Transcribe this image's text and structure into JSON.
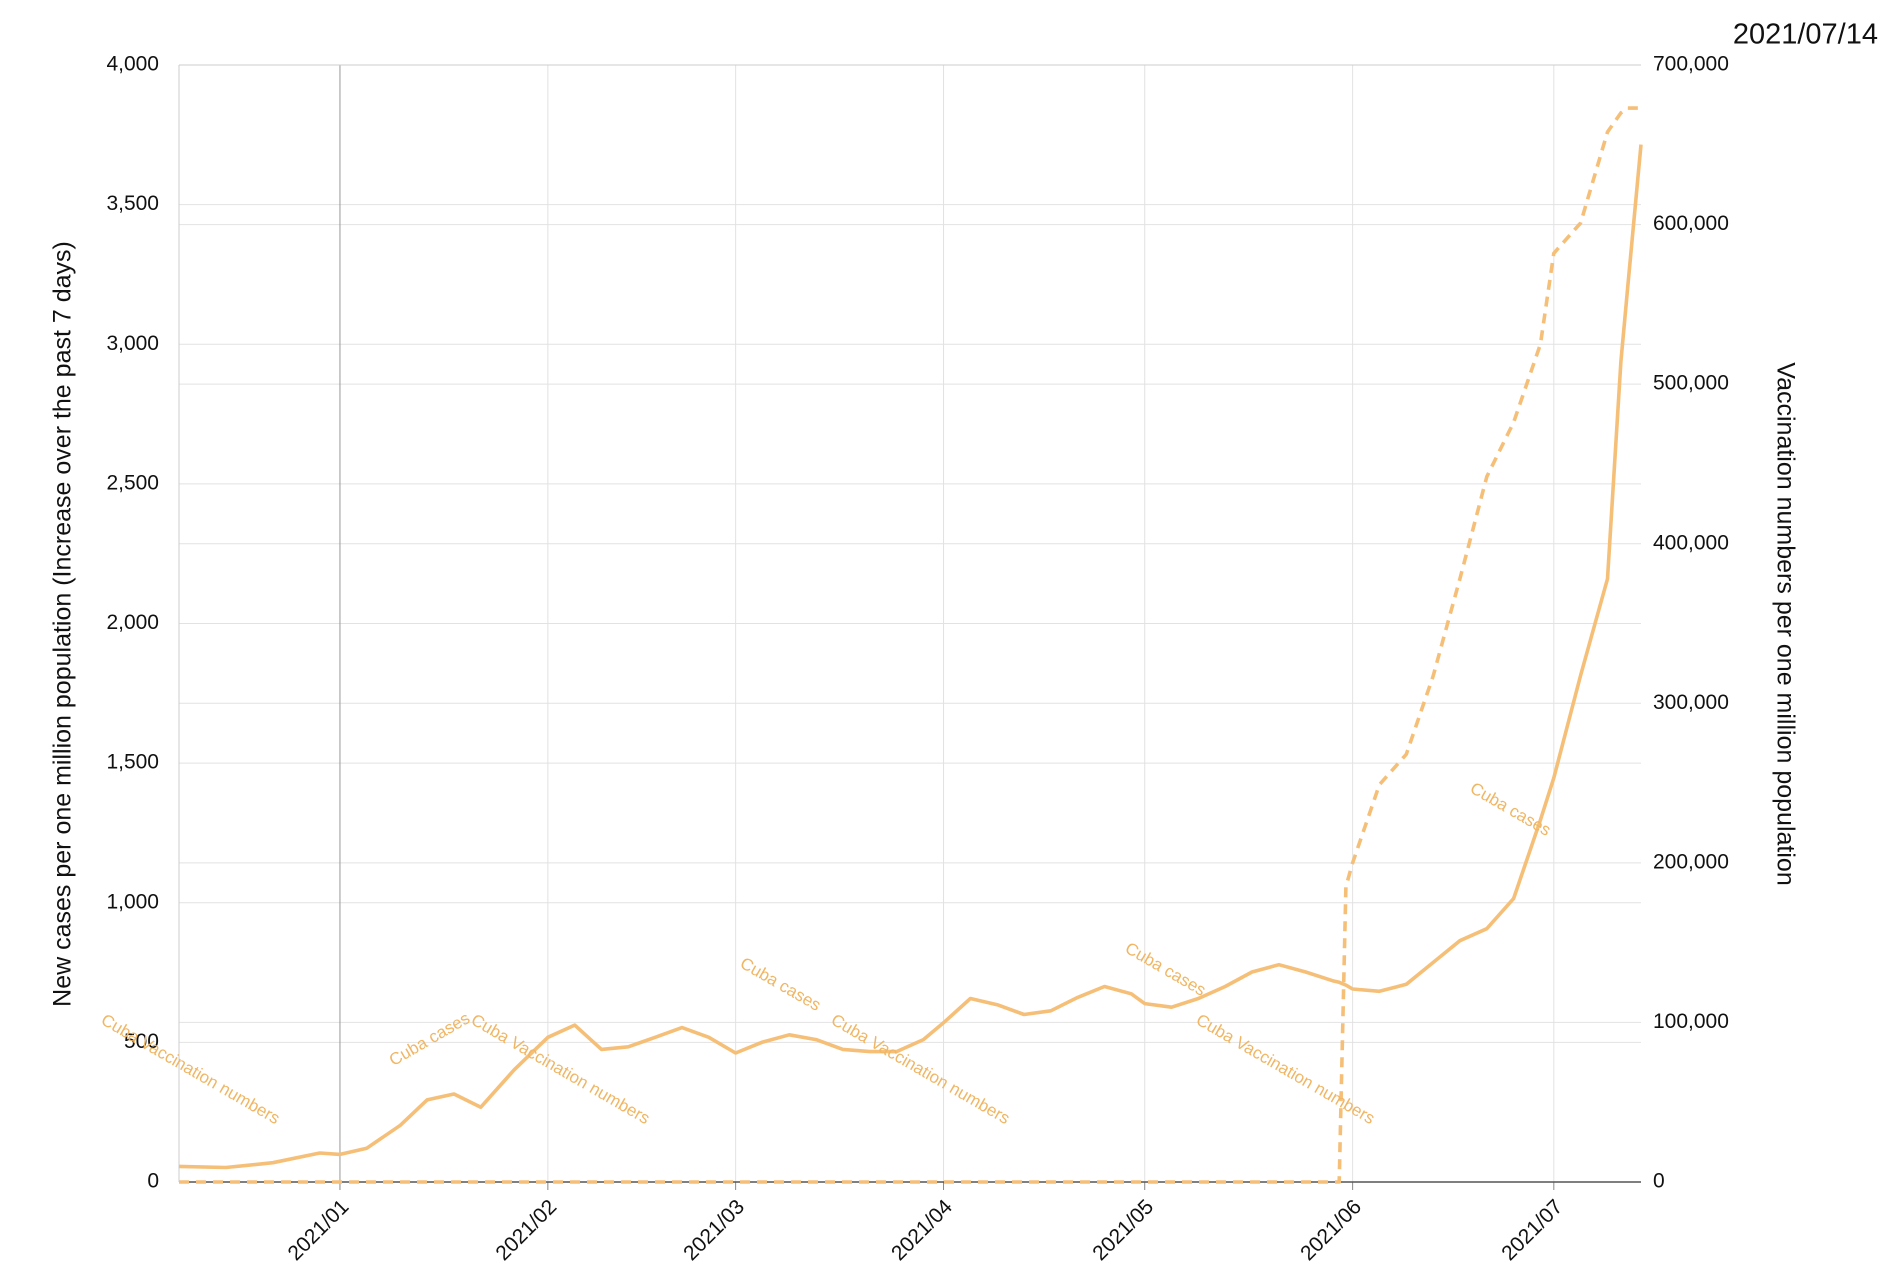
{
  "chart_data": {
    "type": "line",
    "date": "2021/07/14",
    "y_label": "New cases per one million population (Increase over the past 7 days)",
    "y2_label": "Vaccination numbers per one million population",
    "x": [
      "2020/12/08",
      "2020/12/15",
      "2020/12/22",
      "2020/12/29",
      "2021/01/01",
      "2021/01/05",
      "2021/01/10",
      "2021/01/14",
      "2021/01/18",
      "2021/01/22",
      "2021/01/27",
      "2021/02/01",
      "2021/02/05",
      "2021/02/09",
      "2021/02/13",
      "2021/02/17",
      "2021/02/21",
      "2021/02/25",
      "2021/03/01",
      "2021/03/05",
      "2021/03/09",
      "2021/03/13",
      "2021/03/17",
      "2021/03/21",
      "2021/03/25",
      "2021/03/29",
      "2021/04/01",
      "2021/04/05",
      "2021/04/09",
      "2021/04/13",
      "2021/04/17",
      "2021/04/21",
      "2021/04/25",
      "2021/04/29",
      "2021/05/01",
      "2021/05/05",
      "2021/05/09",
      "2021/05/13",
      "2021/05/17",
      "2021/05/21",
      "2021/05/25",
      "2021/05/29",
      "2021/05/30",
      "2021/05/31",
      "2021/06/01",
      "2021/06/05",
      "2021/06/09",
      "2021/06/13",
      "2021/06/17",
      "2021/06/21",
      "2021/06/25",
      "2021/06/29",
      "2021/07/01",
      "2021/07/05",
      "2021/07/09",
      "2021/07/11",
      "2021/07/12",
      "2021/07/14"
    ],
    "series": [
      {
        "name": "Cuba cases",
        "color": "#f5bf78",
        "dash": false,
        "values": [
          56,
          52,
          69,
          104,
          99,
          121,
          203,
          294,
          315,
          268,
          402,
          518,
          562,
          475,
          484,
          518,
          553,
          518,
          462,
          501,
          527,
          510,
          475,
          467,
          467,
          510,
          570,
          657,
          635,
          600,
          613,
          661,
          700,
          674,
          639,
          626,
          657,
          700,
          752,
          778,
          752,
          721,
          715,
          705,
          691,
          683,
          708,
          786,
          864,
          907,
          1015,
          1296,
          1447,
          1814,
          2160,
          2938,
          3200,
          3715
        ]
      },
      {
        "name": "Cuba Vaccination numbers",
        "color": "#f5bf78",
        "dash": true,
        "axis": "y2",
        "values": [
          0,
          0,
          0,
          0,
          0,
          0,
          0,
          0,
          0,
          0,
          0,
          0,
          0,
          0,
          0,
          0,
          0,
          0,
          0,
          0,
          0,
          0,
          0,
          0,
          0,
          0,
          0,
          0,
          0,
          0,
          0,
          0,
          0,
          0,
          0,
          0,
          0,
          0,
          0,
          0,
          0,
          0,
          0,
          185000,
          200000,
          249000,
          268000,
          317000,
          378000,
          442000,
          476000,
          525000,
          582000,
          601000,
          658000,
          670000,
          673000,
          673000
        ]
      }
    ],
    "xlim": [
      "2020/12/08",
      "2021/07/14"
    ],
    "xticks": [
      {
        "value": "2021/01/01",
        "label": "2021/01"
      },
      {
        "value": "2021/02/01",
        "label": "2021/02"
      },
      {
        "value": "2021/03/01",
        "label": "2021/03"
      },
      {
        "value": "2021/04/01",
        "label": "2021/04"
      },
      {
        "value": "2021/05/01",
        "label": "2021/05"
      },
      {
        "value": "2021/06/01",
        "label": "2021/06"
      },
      {
        "value": "2021/07/01",
        "label": "2021/07"
      }
    ],
    "ylim": [
      0,
      4000
    ],
    "yticks": [
      0,
      {
        "value": 500,
        "label": "500"
      },
      {
        "value": 1000,
        "label": "1,000"
      },
      {
        "value": 1500,
        "label": "1,500"
      },
      {
        "value": 2000,
        "label": "2,000"
      },
      {
        "value": 2500,
        "label": "2,500"
      },
      {
        "value": 3000,
        "label": "3,000"
      },
      {
        "value": 3500,
        "label": "3,500"
      },
      {
        "value": 4000,
        "label": "4,000"
      }
    ],
    "y2lim": [
      0,
      700000
    ],
    "y2ticks": [
      0,
      {
        "value": 100000,
        "label": "100,000"
      },
      {
        "value": 200000,
        "label": "200,000"
      },
      {
        "value": 300000,
        "label": "300,000"
      },
      {
        "value": 400000,
        "label": "400,000"
      },
      {
        "value": 500000,
        "label": "500,000"
      },
      {
        "value": 600000,
        "label": "600,000"
      },
      {
        "value": 700000,
        "label": "700,000"
      }
    ],
    "grid": true
  }
}
